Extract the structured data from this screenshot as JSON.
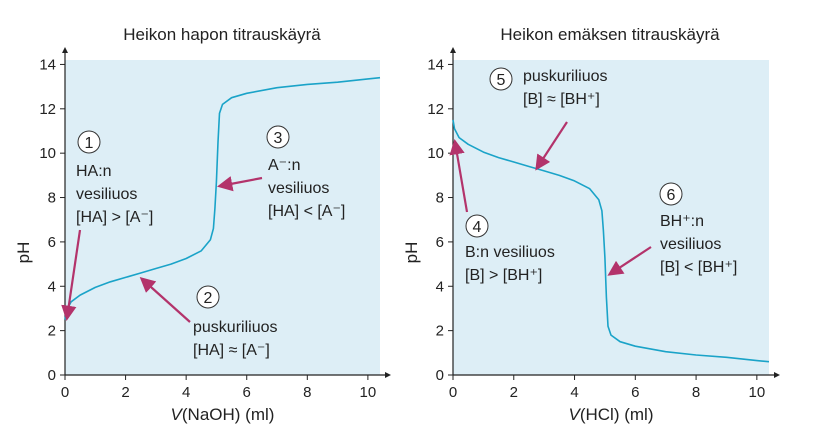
{
  "chart_data": [
    {
      "type": "line",
      "title": "Heikon hapon titrauskäyrä",
      "xlabel_italic": "V",
      "xlabel_rest": "(NaOH) (ml)",
      "ylabel": "pH",
      "xlim": [
        0,
        10.4
      ],
      "ylim": [
        0,
        14.2
      ],
      "xticks": [
        "0",
        "2",
        "4",
        "6",
        "8",
        "10"
      ],
      "yticks": [
        "0",
        "2",
        "4",
        "6",
        "8",
        "10",
        "12",
        "14"
      ],
      "series": [
        {
          "x": [
            0,
            0.05,
            0.2,
            0.5,
            1.0,
            1.5,
            2.0,
            2.5,
            3.0,
            3.5,
            4.0,
            4.5,
            4.8,
            4.9,
            4.95,
            5.0,
            5.05,
            5.1,
            5.2,
            5.5,
            6.0,
            7.0,
            8.0,
            9.0,
            10.0,
            10.4
          ],
          "y": [
            2.5,
            2.9,
            3.3,
            3.6,
            3.95,
            4.2,
            4.4,
            4.6,
            4.8,
            5.0,
            5.25,
            5.6,
            6.1,
            6.6,
            7.5,
            8.7,
            10.5,
            11.8,
            12.2,
            12.5,
            12.7,
            12.95,
            13.1,
            13.2,
            13.35,
            13.4
          ]
        }
      ],
      "annotations": [
        {
          "number": "1",
          "lines": [
            "HA:n",
            "vesiliuos",
            "[HA] > [A⁻]"
          ]
        },
        {
          "number": "2",
          "lines": [
            "puskuriliuos",
            "[HA] ≈ [A⁻]"
          ]
        },
        {
          "number": "3",
          "lines": [
            "A⁻:n",
            "vesiliuos",
            "[HA] < [A⁻]"
          ]
        }
      ]
    },
    {
      "type": "line",
      "title": "Heikon emäksen titrauskäyrä",
      "xlabel_italic": "V",
      "xlabel_rest": "(HCl) (ml)",
      "ylabel": "pH",
      "xlim": [
        0,
        10.4
      ],
      "ylim": [
        0,
        14.2
      ],
      "xticks": [
        "0",
        "2",
        "4",
        "6",
        "8",
        "10"
      ],
      "yticks": [
        "0",
        "2",
        "4",
        "6",
        "8",
        "10",
        "12",
        "14"
      ],
      "series": [
        {
          "x": [
            0,
            0.05,
            0.2,
            0.5,
            1.0,
            1.5,
            2.0,
            2.5,
            3.0,
            3.5,
            4.0,
            4.5,
            4.8,
            4.9,
            4.95,
            5.0,
            5.05,
            5.1,
            5.2,
            5.5,
            6.0,
            7.0,
            8.0,
            9.0,
            10.0,
            10.4
          ],
          "y": [
            11.5,
            11.1,
            10.7,
            10.4,
            10.05,
            9.8,
            9.6,
            9.4,
            9.2,
            9.0,
            8.75,
            8.4,
            7.9,
            7.4,
            6.5,
            5.3,
            3.5,
            2.2,
            1.8,
            1.5,
            1.3,
            1.05,
            0.9,
            0.8,
            0.65,
            0.6
          ]
        }
      ],
      "annotations": [
        {
          "number": "4",
          "lines": [
            "B:n vesiliuos",
            "[B] > [BH⁺]"
          ]
        },
        {
          "number": "5",
          "lines": [
            "puskuriliuos",
            "[B] ≈ [BH⁺]"
          ]
        },
        {
          "number": "6",
          "lines": [
            "BH⁺:n",
            "vesiliuos",
            "[B] < [BH⁺]"
          ]
        }
      ]
    }
  ],
  "colors": {
    "plot_background": "#ddeef6",
    "curve": "#1aa3c8",
    "arrow": "#b3336b",
    "axis": "#222222"
  }
}
